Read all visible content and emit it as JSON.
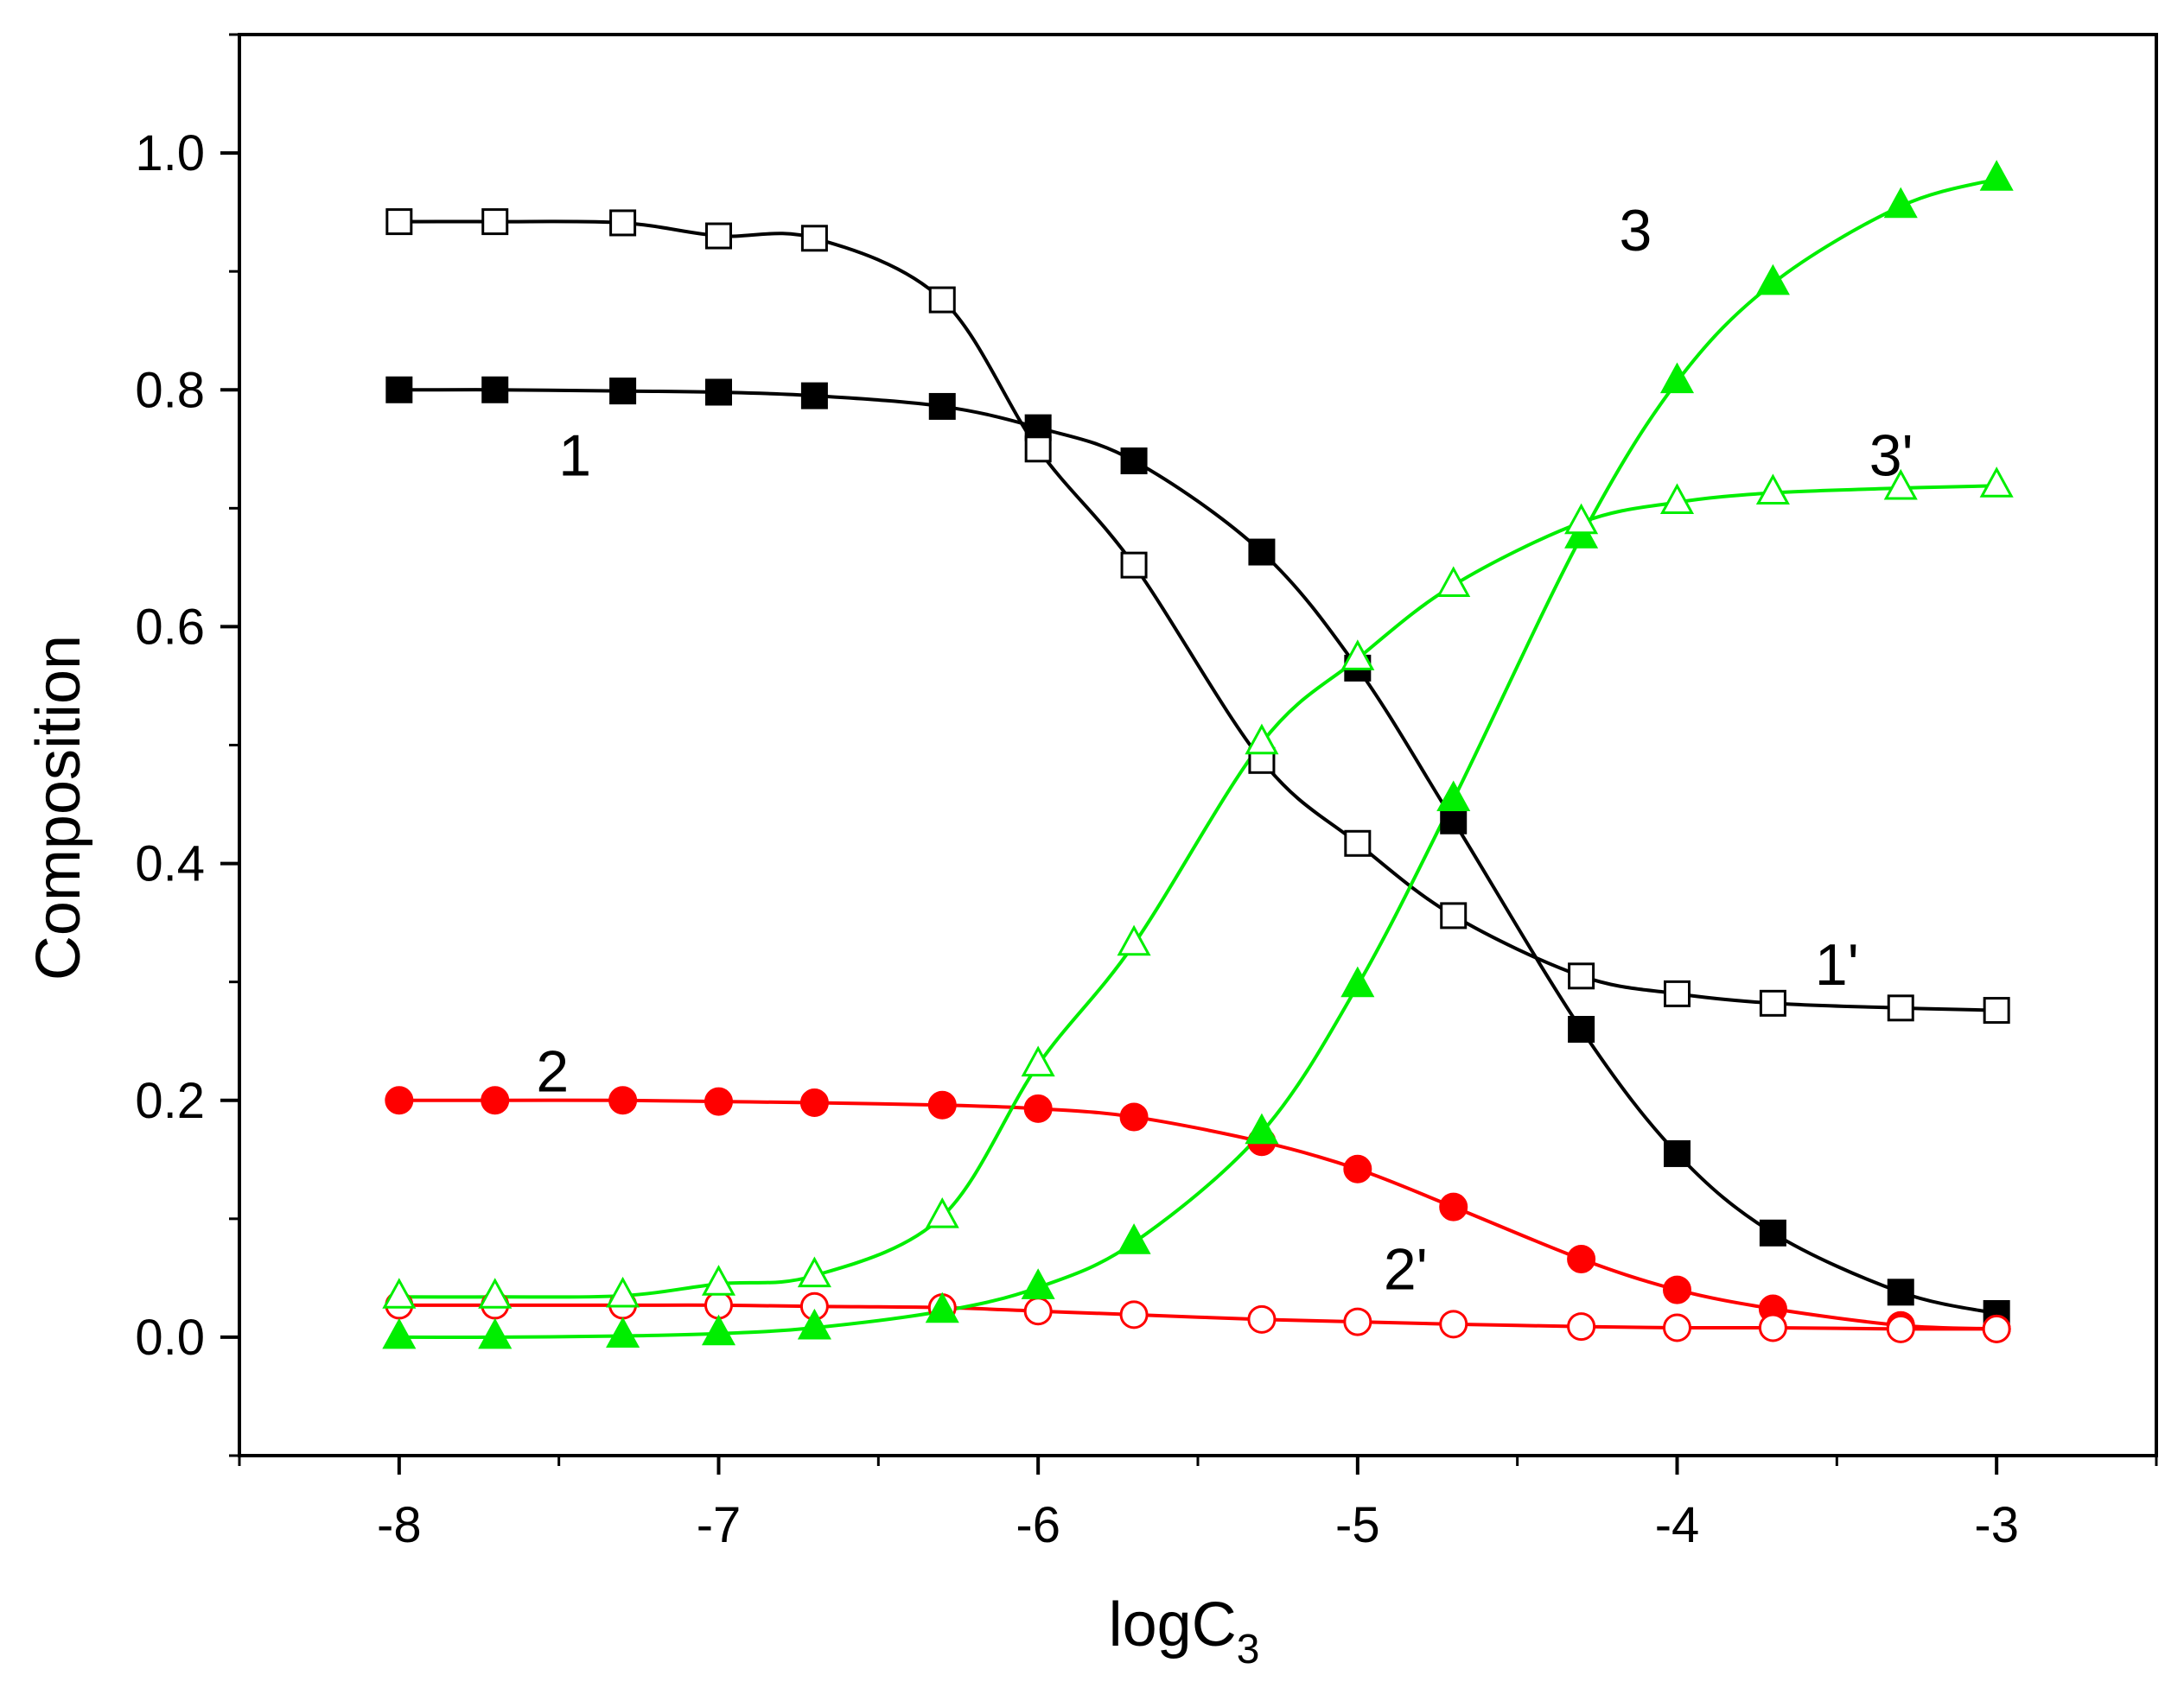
{
  "chart_data": {
    "type": "line",
    "title": "",
    "xlabel": "logC",
    "xlabel_subscript": "3",
    "ylabel": "Composition",
    "xlim": [
      -8.5,
      -2.5
    ],
    "ylim": [
      -0.1,
      1.1
    ],
    "xticks": [
      -8,
      -7,
      -6,
      -5,
      -4,
      -3
    ],
    "xtick_labels": [
      "-8",
      "-7",
      "-6",
      "-5",
      "-4",
      "-3"
    ],
    "yticks": [
      0.0,
      0.2,
      0.4,
      0.6,
      0.8,
      1.0
    ],
    "ytick_labels": [
      "0.0",
      "0.2",
      "0.4",
      "0.6",
      "0.8",
      "1.0"
    ],
    "grid": false,
    "legend": "none",
    "x": [
      -8,
      -7.7,
      -7.3,
      -7,
      -6.7,
      -6.3,
      -6,
      -5.7,
      -5.3,
      -5,
      -4.7,
      -4.3,
      -4,
      -3.7,
      -3.3,
      -3
    ],
    "series": [
      {
        "name": "1",
        "label": "1",
        "color": "#000000",
        "marker": "square",
        "filled": true,
        "values": [
          0.8,
          0.8,
          0.799,
          0.798,
          0.795,
          0.786,
          0.768,
          0.74,
          0.663,
          0.565,
          0.436,
          0.26,
          0.155,
          0.088,
          0.038,
          0.02
        ]
      },
      {
        "name": "1'",
        "label": "1'",
        "color": "#000000",
        "marker": "square",
        "filled": false,
        "values": [
          0.942,
          0.942,
          0.941,
          0.93,
          0.928,
          0.876,
          0.75,
          0.652,
          0.487,
          0.417,
          0.356,
          0.305,
          0.29,
          0.282,
          0.278,
          0.276
        ]
      },
      {
        "name": "2",
        "label": "2",
        "color": "#ff0000",
        "marker": "circle",
        "filled": true,
        "values": [
          0.2,
          0.2,
          0.2,
          0.199,
          0.198,
          0.196,
          0.193,
          0.186,
          0.165,
          0.142,
          0.11,
          0.066,
          0.04,
          0.024,
          0.01,
          0.007
        ]
      },
      {
        "name": "2'",
        "label": "2'",
        "color": "#ff0000",
        "marker": "circle",
        "filled": false,
        "values": [
          0.027,
          0.027,
          0.027,
          0.027,
          0.026,
          0.025,
          0.022,
          0.019,
          0.015,
          0.013,
          0.011,
          0.009,
          0.008,
          0.008,
          0.007,
          0.007
        ]
      },
      {
        "name": "3",
        "label": "3",
        "color": "#00ee00",
        "marker": "triangle",
        "filled": true,
        "values": [
          0.0,
          0.0,
          0.001,
          0.003,
          0.008,
          0.022,
          0.042,
          0.08,
          0.173,
          0.297,
          0.454,
          0.676,
          0.807,
          0.89,
          0.955,
          0.978
        ]
      },
      {
        "name": "3'",
        "label": "3'",
        "color": "#00ee00",
        "marker": "triangle",
        "filled": false,
        "values": [
          0.034,
          0.034,
          0.035,
          0.045,
          0.052,
          0.102,
          0.23,
          0.332,
          0.502,
          0.573,
          0.635,
          0.688,
          0.705,
          0.713,
          0.717,
          0.719
        ]
      }
    ],
    "annotations": [
      {
        "text": "1",
        "series": "1",
        "x": -7.45,
        "y": 0.745
      },
      {
        "text": "1'",
        "series": "1'",
        "x": -3.5,
        "y": 0.315
      },
      {
        "text": "2",
        "series": "2",
        "x": -7.52,
        "y": 0.225
      },
      {
        "text": "2'",
        "series": "2'",
        "x": -4.85,
        "y": 0.058
      },
      {
        "text": "3",
        "series": "3",
        "x": -4.13,
        "y": 0.935
      },
      {
        "text": "3'",
        "series": "3'",
        "x": -3.33,
        "y": 0.745
      }
    ]
  }
}
